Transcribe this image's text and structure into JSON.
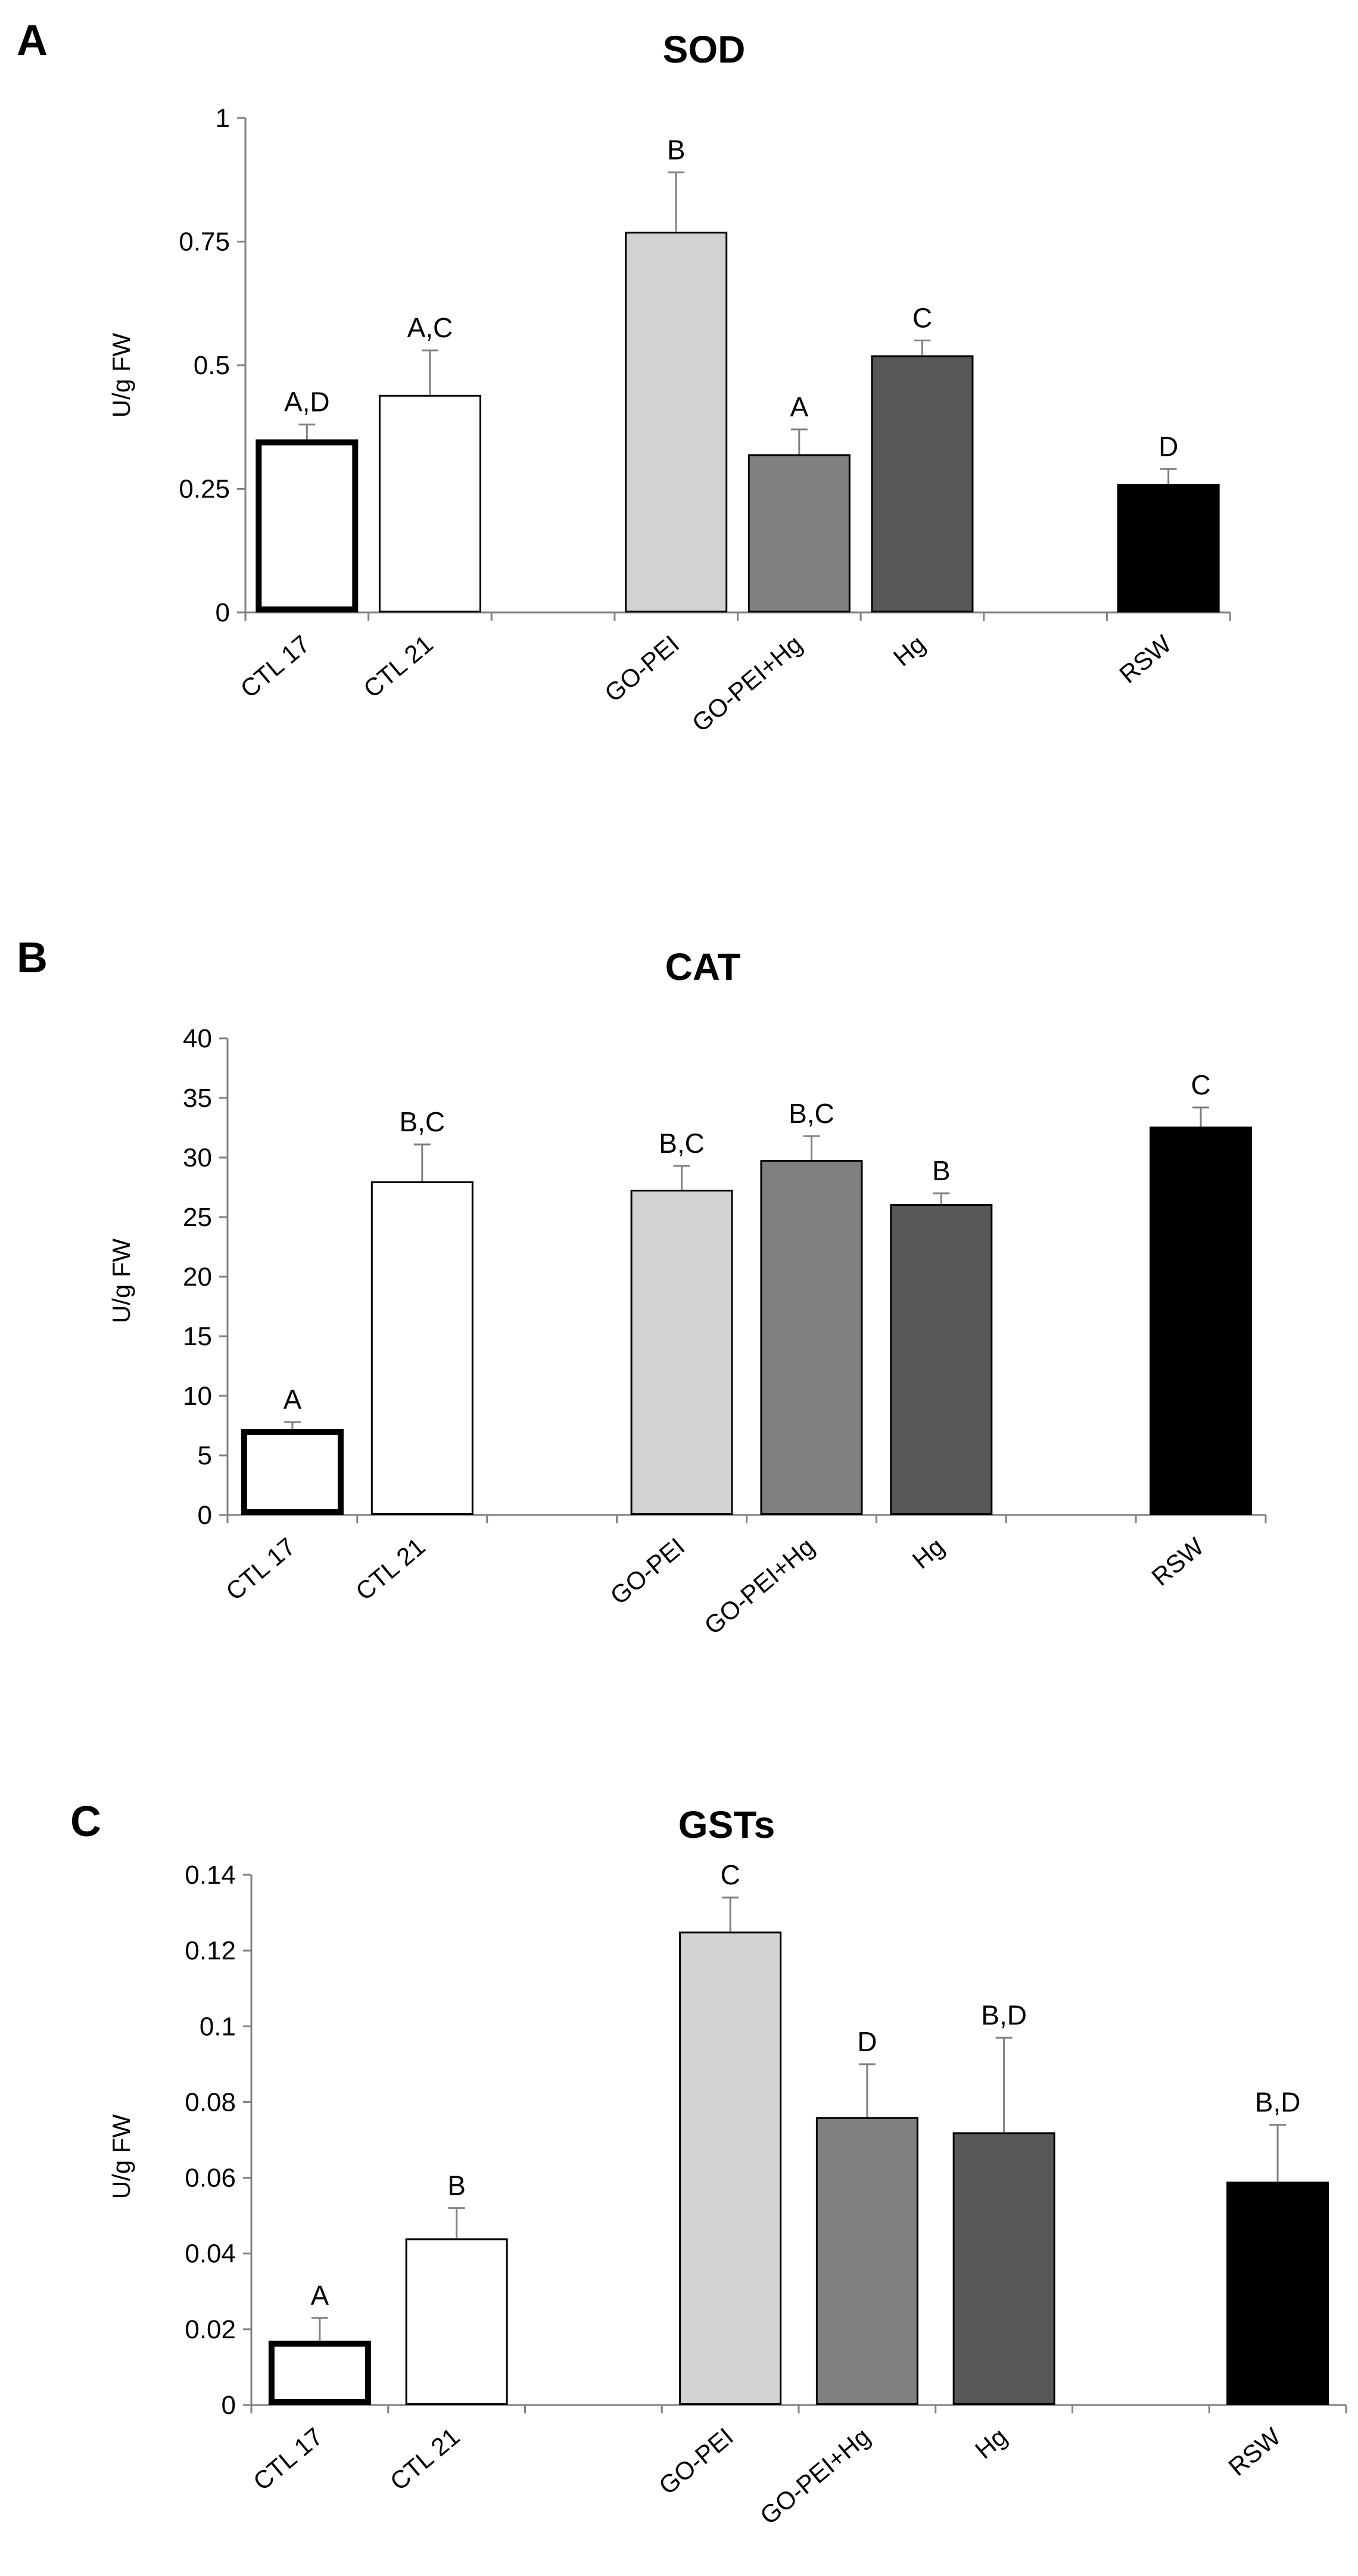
{
  "chart_data": [
    {
      "type": "bar",
      "panel": "A",
      "title": "SOD",
      "xlabel": "",
      "ylabel": "U/g FW",
      "ylim": [
        0,
        1
      ],
      "yticks": [
        0,
        0.25,
        0.5,
        0.75,
        1
      ],
      "ytick_labels": [
        "0",
        "0.25",
        "0.5",
        "0.75",
        "1"
      ],
      "categories": [
        "CTL 17",
        "CTL 21",
        "",
        "GO-PEI",
        "GO-PEI+Hg",
        "Hg",
        "",
        "RSW"
      ],
      "values": [
        0.35,
        0.44,
        null,
        0.77,
        0.32,
        0.52,
        null,
        0.26
      ],
      "errors": [
        0.03,
        0.09,
        null,
        0.12,
        0.05,
        0.03,
        null,
        0.03
      ],
      "significance": [
        "A,D",
        "A,C",
        "",
        "B",
        "A",
        "C",
        "",
        "D"
      ],
      "bar_colors": [
        "#ffffff",
        "#ffffff",
        "",
        "#d2d2d2",
        "#808080",
        "#585858",
        "",
        "#000000"
      ]
    },
    {
      "type": "bar",
      "panel": "B",
      "title": "CAT",
      "xlabel": "",
      "ylabel": "U/g FW",
      "ylim": [
        0,
        40
      ],
      "yticks": [
        0,
        5,
        10,
        15,
        20,
        25,
        30,
        35,
        40
      ],
      "ytick_labels": [
        "0",
        "5",
        "10",
        "15",
        "20",
        "25",
        "30",
        "35",
        "40"
      ],
      "categories": [
        "CTL 17",
        "CTL 21",
        "",
        "GO-PEI",
        "GO-PEI+Hg",
        "Hg",
        "",
        "RSW"
      ],
      "values": [
        7.2,
        28.0,
        null,
        27.3,
        29.8,
        26.1,
        null,
        32.6
      ],
      "errors": [
        0.6,
        3.1,
        null,
        2.0,
        2.0,
        0.9,
        null,
        1.6
      ],
      "significance": [
        "A",
        "B,C",
        "",
        "B,C",
        "B,C",
        "B",
        "",
        "C"
      ],
      "bar_colors": [
        "#ffffff",
        "#ffffff",
        "",
        "#d2d2d2",
        "#808080",
        "#585858",
        "",
        "#000000"
      ]
    },
    {
      "type": "bar",
      "panel": "C",
      "title": "GSTs",
      "xlabel": "",
      "ylabel": "U/g FW",
      "ylim": [
        0,
        0.14
      ],
      "yticks": [
        0,
        0.02,
        0.04,
        0.06,
        0.08,
        0.1,
        0.12,
        0.14
      ],
      "ytick_labels": [
        "0",
        "0.02",
        "0.04",
        "0.06",
        "0.08",
        "0.1",
        "0.12",
        "0.14"
      ],
      "categories": [
        "CTL 17",
        "CTL 21",
        "",
        "GO-PEI",
        "GO-PEI+Hg",
        "Hg",
        "",
        "RSW"
      ],
      "values": [
        0.017,
        0.044,
        null,
        0.125,
        0.076,
        0.072,
        null,
        0.059
      ],
      "errors": [
        0.006,
        0.008,
        null,
        0.009,
        0.014,
        0.025,
        null,
        0.015
      ],
      "significance": [
        "A",
        "B",
        "",
        "C",
        "D",
        "B,D",
        "",
        "B,D"
      ],
      "bar_colors": [
        "#ffffff",
        "#ffffff",
        "",
        "#d2d2d2",
        "#808080",
        "#585858",
        "",
        "#000000"
      ]
    }
  ]
}
